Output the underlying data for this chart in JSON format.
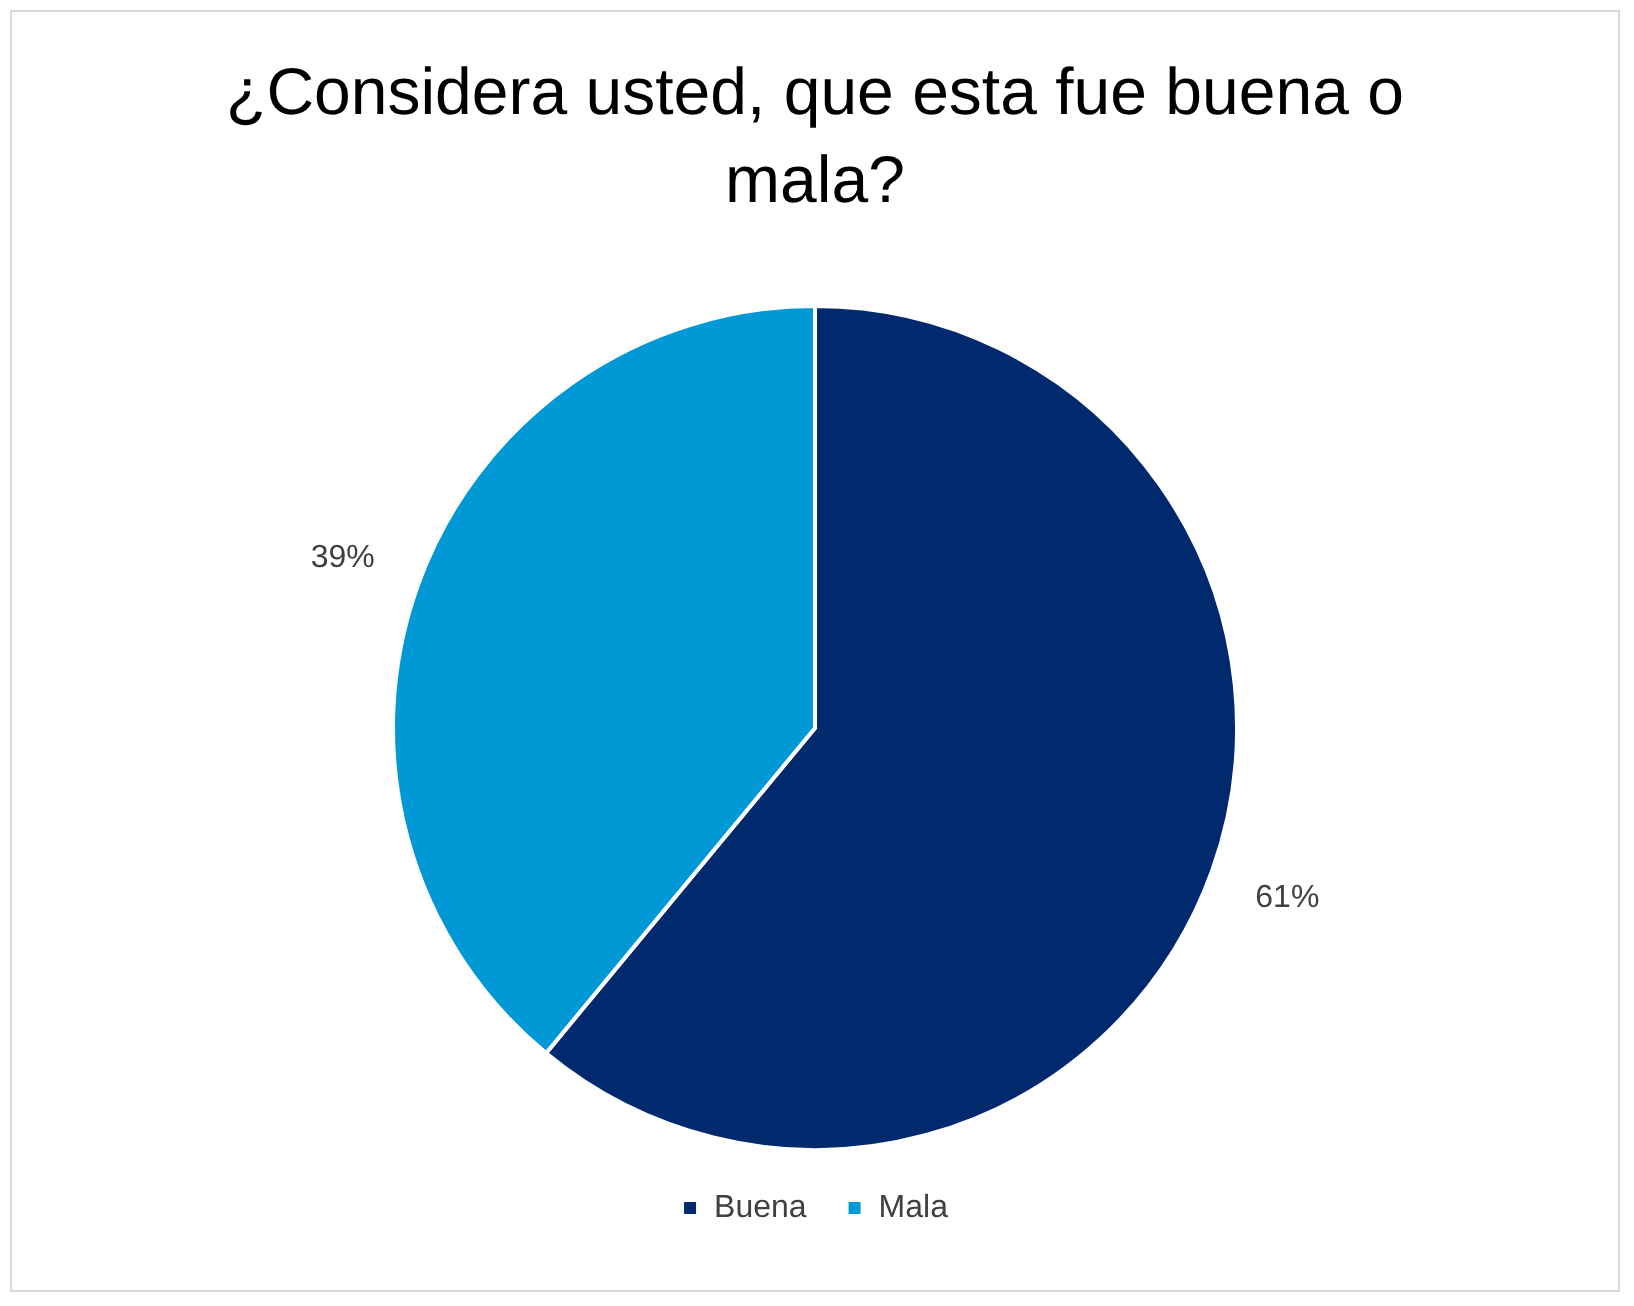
{
  "chart_data": {
    "type": "pie",
    "title": "¿Considera usted, que esta fue buena o mala?",
    "categories": [
      "Buena",
      "Mala"
    ],
    "values": [
      61,
      39
    ],
    "colors": [
      "#012a6e",
      "#0099d6"
    ],
    "value_labels": [
      "61%",
      "39%"
    ],
    "legend": "bottom"
  }
}
